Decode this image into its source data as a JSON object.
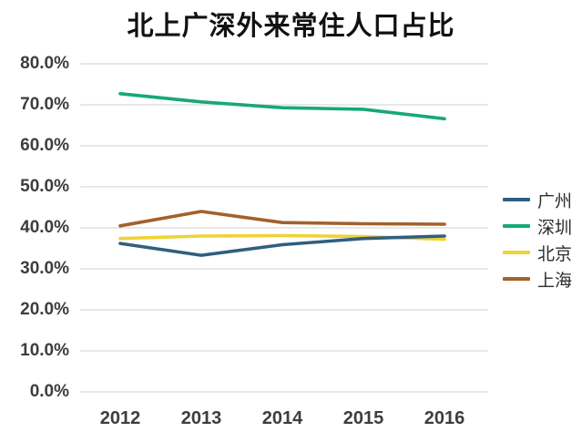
{
  "chart_data": {
    "type": "line",
    "title": "北上广深外来常住人口占比",
    "categories": [
      "2012",
      "2013",
      "2014",
      "2015",
      "2016"
    ],
    "series": [
      {
        "name": "广州",
        "slug": "guangzhou",
        "color": "#2E5F80",
        "values": [
          36.2,
          33.3,
          35.9,
          37.4,
          38.0
        ]
      },
      {
        "name": "深圳",
        "slug": "shenzhen",
        "color": "#16A878",
        "values": [
          72.7,
          70.7,
          69.3,
          68.9,
          66.6
        ]
      },
      {
        "name": "北京",
        "slug": "beijing",
        "color": "#F0D235",
        "values": [
          37.4,
          38.0,
          38.1,
          37.9,
          37.2
        ]
      },
      {
        "name": "上海",
        "slug": "shanghai",
        "color": "#A2612C",
        "values": [
          40.5,
          44.0,
          41.3,
          41.0,
          40.9
        ]
      }
    ],
    "ylabel": "",
    "xlabel": "",
    "ylim": [
      0,
      80
    ],
    "ytick_step": 10,
    "ytick_labels_top_to_bottom": [
      "80.0%",
      "70.0%",
      "60.0%",
      "50.0%",
      "40.0%",
      "30.0%",
      "20.0%",
      "10.0%",
      "0.0%"
    ],
    "grid": "horizontal",
    "gridline_color": "#d9d9d9",
    "background_color": "#ffffff",
    "legend_position": "right"
  }
}
